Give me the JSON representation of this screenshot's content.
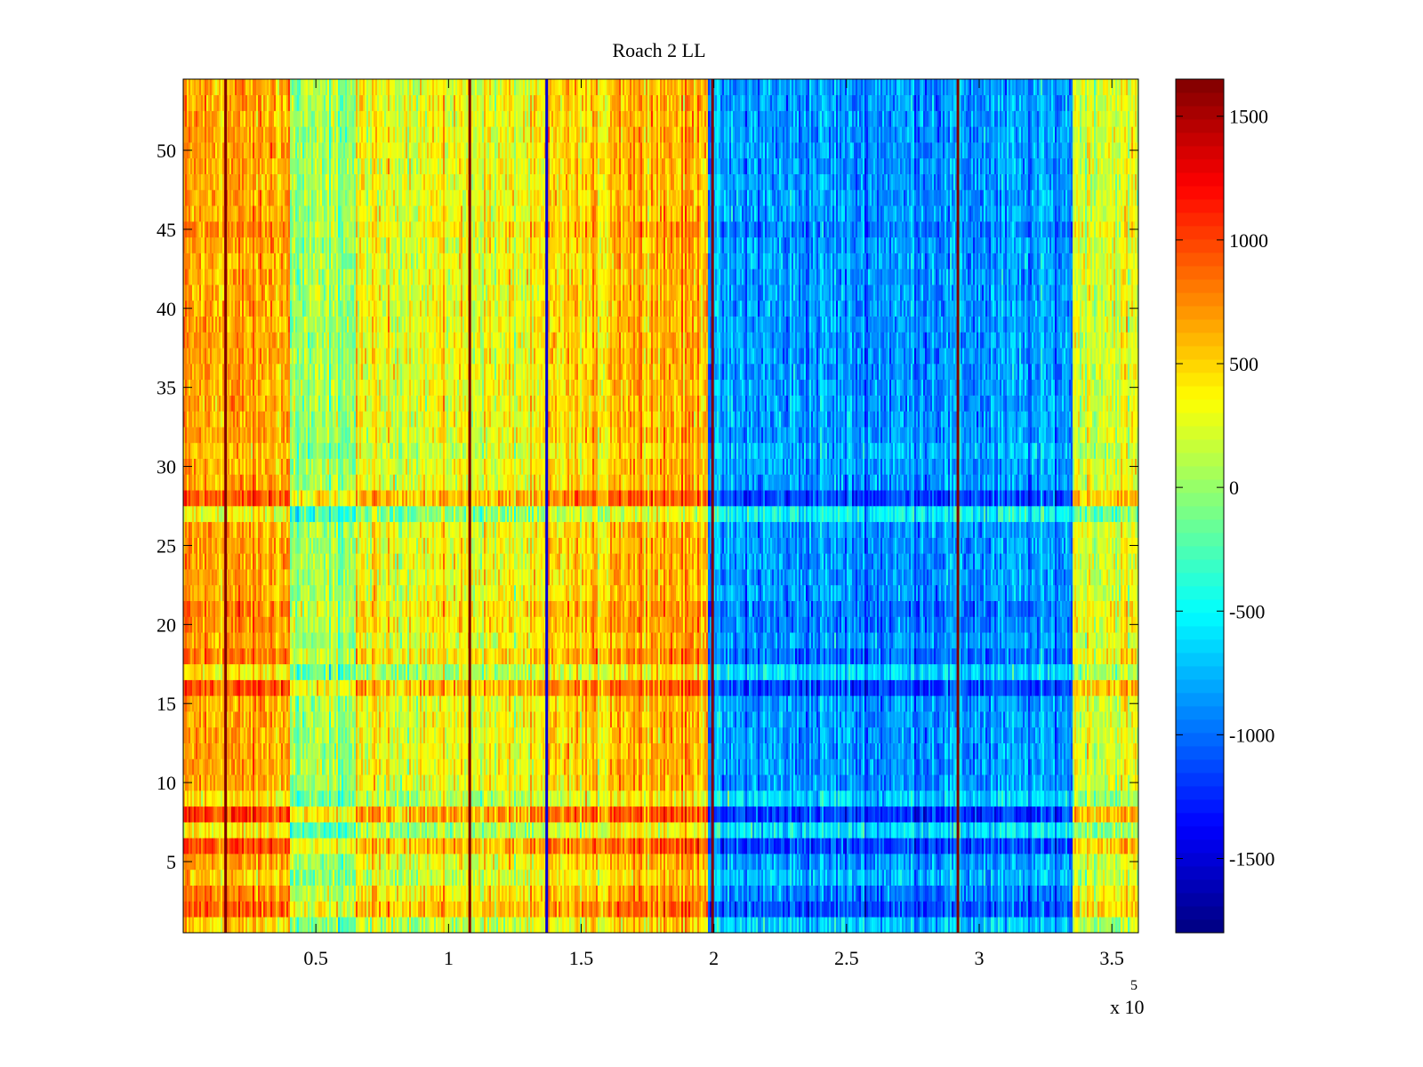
{
  "chart_data": {
    "type": "heatmap",
    "title": "Roach 2 LL",
    "xlabel": "",
    "ylabel": "",
    "x_multiplier_label": "x 10",
    "x_multiplier_exponent": "5",
    "xlim": [
      0,
      360000
    ],
    "ylim": [
      0.5,
      54.5
    ],
    "rows": 54,
    "x_ticks": [
      {
        "value": 50000,
        "label": "0.5"
      },
      {
        "value": 100000,
        "label": "1"
      },
      {
        "value": 150000,
        "label": "1.5"
      },
      {
        "value": 200000,
        "label": "2"
      },
      {
        "value": 250000,
        "label": "2.5"
      },
      {
        "value": 300000,
        "label": "3"
      },
      {
        "value": 350000,
        "label": "3.5"
      }
    ],
    "y_ticks": [
      {
        "value": 5,
        "label": "5"
      },
      {
        "value": 10,
        "label": "10"
      },
      {
        "value": 15,
        "label": "15"
      },
      {
        "value": 20,
        "label": "20"
      },
      {
        "value": 25,
        "label": "25"
      },
      {
        "value": 30,
        "label": "30"
      },
      {
        "value": 35,
        "label": "35"
      },
      {
        "value": 40,
        "label": "40"
      },
      {
        "value": 45,
        "label": "45"
      },
      {
        "value": 50,
        "label": "50"
      }
    ],
    "colorbar": {
      "colormap": "jet",
      "clim": [
        -1800,
        1650
      ],
      "ticks": [
        {
          "value": 1500,
          "label": "1500"
        },
        {
          "value": 1000,
          "label": "1000"
        },
        {
          "value": 500,
          "label": "500"
        },
        {
          "value": 0,
          "label": "0"
        },
        {
          "value": -500,
          "label": "-500"
        },
        {
          "value": -1000,
          "label": "-1000"
        },
        {
          "value": -1500,
          "label": "-1500"
        }
      ]
    },
    "segments": [
      {
        "x_start": 0,
        "x_end": 40000,
        "mean": 650
      },
      {
        "x_start": 40000,
        "x_end": 65000,
        "mean": 0
      },
      {
        "x_start": 65000,
        "x_end": 108000,
        "mean": 300
      },
      {
        "x_start": 108000,
        "x_end": 137000,
        "mean": 300
      },
      {
        "x_start": 137000,
        "x_end": 160000,
        "mean": 450
      },
      {
        "x_start": 160000,
        "x_end": 198000,
        "mean": 650
      },
      {
        "x_start": 198000,
        "x_end": 335000,
        "mean": -850
      },
      {
        "x_start": 335000,
        "x_end": 360000,
        "mean": 250
      }
    ],
    "vertical_lines": [
      {
        "x": 16000,
        "value": 1650
      },
      {
        "x": 108000,
        "value": 1650
      },
      {
        "x": 137000,
        "value": -1500
      },
      {
        "x": 199500,
        "value": 1650
      },
      {
        "x": 292000,
        "value": 1650
      }
    ],
    "row_offsets": [
      {
        "row": 1,
        "offset": -150
      },
      {
        "row": 2,
        "offset": 250
      },
      {
        "row": 3,
        "offset": 100
      },
      {
        "row": 4,
        "offset": -100
      },
      {
        "row": 6,
        "offset": 300
      },
      {
        "row": 7,
        "offset": -250
      },
      {
        "row": 8,
        "offset": 350
      },
      {
        "row": 9,
        "offset": -200
      },
      {
        "row": 16,
        "offset": 300
      },
      {
        "row": 17,
        "offset": -200
      },
      {
        "row": 18,
        "offset": 150
      },
      {
        "row": 27,
        "offset": -350
      },
      {
        "row": 28,
        "offset": 300
      },
      {
        "row": 20,
        "offset": 100
      },
      {
        "row": 21,
        "offset": 120
      },
      {
        "row": 31,
        "offset": -100
      },
      {
        "row": 45,
        "offset": 80
      }
    ]
  }
}
